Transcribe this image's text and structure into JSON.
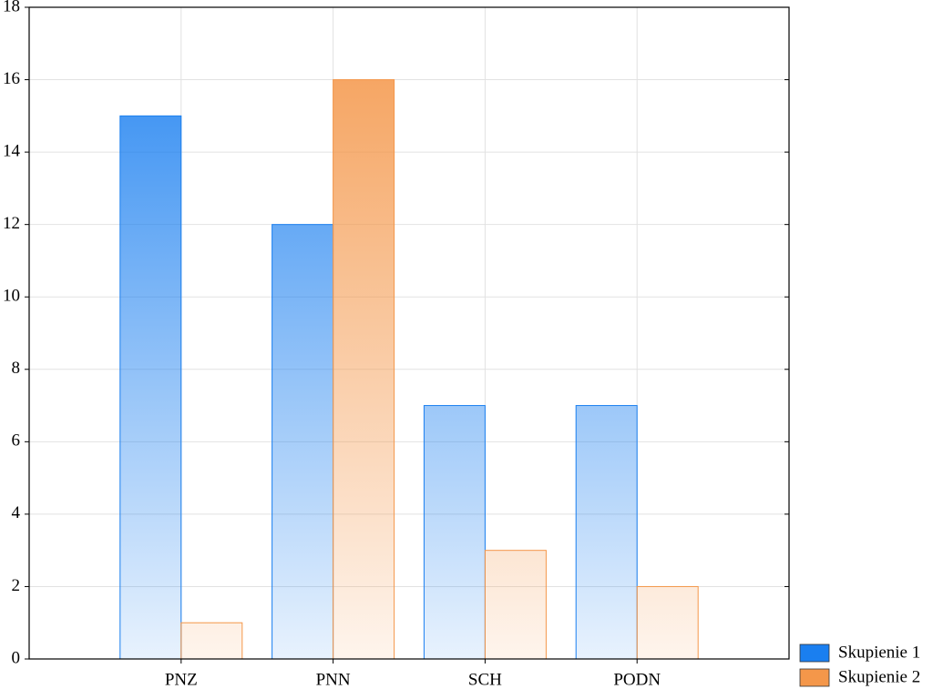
{
  "chart_data": {
    "type": "bar",
    "categories": [
      "PNZ",
      "PNN",
      "SCH",
      "PODN"
    ],
    "series": [
      {
        "name": "Skupienie 1",
        "color": "#1a7ff0",
        "values": [
          15,
          12,
          7,
          7
        ]
      },
      {
        "name": "Skupienie 2",
        "color": "#f4974a",
        "values": [
          1,
          16,
          3,
          2
        ]
      }
    ],
    "ylim": [
      0,
      18
    ],
    "yticks": [
      0,
      2,
      4,
      6,
      8,
      10,
      12,
      14,
      16,
      18
    ],
    "grid": true,
    "legend": "bottom-right"
  }
}
